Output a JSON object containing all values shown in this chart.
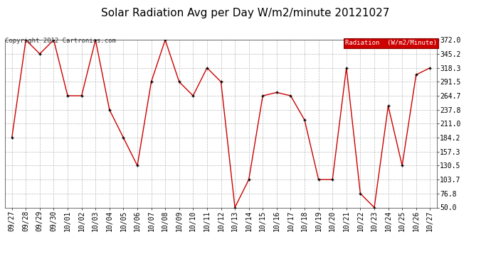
{
  "title": "Solar Radiation Avg per Day W/m2/minute 20121027",
  "copyright_text": "Copyright 2012 Cartronics.com",
  "legend_label": "Radiation  (W/m2/Minute)",
  "x_labels": [
    "09/27",
    "09/28",
    "09/29",
    "09/30",
    "10/01",
    "10/02",
    "10/03",
    "10/04",
    "10/05",
    "10/06",
    "10/07",
    "10/08",
    "10/09",
    "10/10",
    "10/11",
    "10/12",
    "10/13",
    "10/14",
    "10/15",
    "10/16",
    "10/17",
    "10/18",
    "10/19",
    "10/20",
    "10/21",
    "10/22",
    "10/23",
    "10/24",
    "10/25",
    "10/26",
    "10/27"
  ],
  "y_values": [
    184.2,
    372.0,
    345.2,
    372.0,
    264.7,
    264.7,
    372.0,
    237.8,
    184.2,
    130.5,
    291.5,
    372.0,
    291.5,
    264.7,
    318.3,
    291.5,
    50.0,
    103.7,
    264.7,
    271.0,
    264.7,
    218.0,
    103.7,
    103.7,
    318.3,
    76.8,
    50.0,
    245.0,
    130.5,
    305.0,
    318.3
  ],
  "y_ticks": [
    50.0,
    76.8,
    103.7,
    130.5,
    157.3,
    184.2,
    211.0,
    237.8,
    264.7,
    291.5,
    318.3,
    345.2,
    372.0
  ],
  "ylim": [
    50.0,
    372.0
  ],
  "line_color": "#cc0000",
  "marker_color": "#000000",
  "grid_color": "#bbbbbb",
  "bg_color": "#ffffff",
  "legend_bg": "#cc0000",
  "legend_text_color": "#ffffff",
  "title_fontsize": 11,
  "tick_fontsize": 7,
  "copyright_fontsize": 6.5
}
